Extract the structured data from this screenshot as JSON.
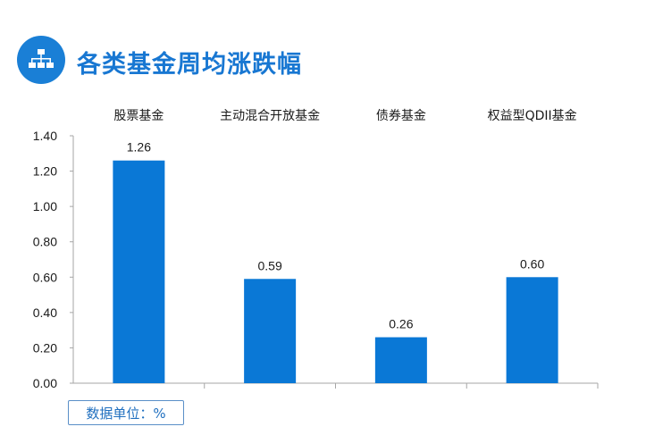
{
  "header": {
    "title": "各类基金周均涨跌幅",
    "icon": "hierarchy-icon",
    "accent": "#1a7fd6"
  },
  "chart_data": {
    "type": "bar",
    "categories": [
      "股票基金",
      "主动混合开放基金",
      "债券基金",
      "权益型QDII基金"
    ],
    "values": [
      1.26,
      0.59,
      0.26,
      0.6
    ],
    "value_labels": [
      "1.26",
      "0.59",
      "0.26",
      "0.60"
    ],
    "y_ticks": [
      "0.00",
      "0.20",
      "0.40",
      "0.60",
      "0.80",
      "1.00",
      "1.20",
      "1.40"
    ],
    "ylim": [
      0,
      1.4
    ],
    "category_axis_position": "top",
    "bar_color": "#0a78d6",
    "grid": false,
    "legend": "none"
  },
  "footer": {
    "unit_label": "数据单位：%"
  }
}
